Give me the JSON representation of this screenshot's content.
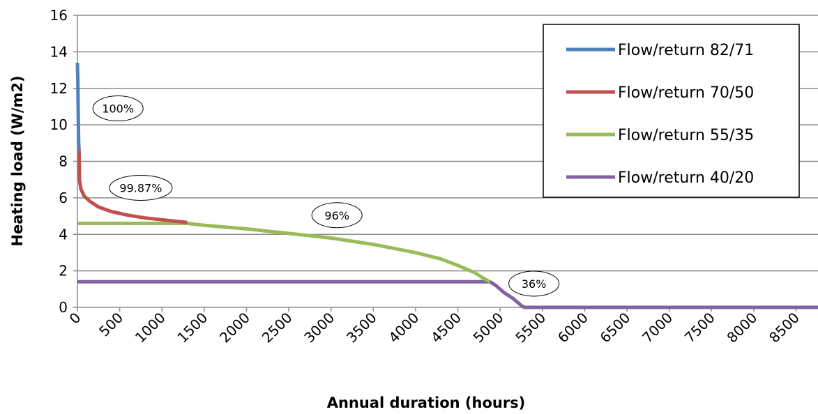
{
  "chart_data": {
    "type": "line",
    "xlabel": "Annual duration (hours)",
    "ylabel": "Heating load (W/m2)",
    "xlim": [
      0,
      8760
    ],
    "ylim": [
      0,
      16
    ],
    "x_ticks": [
      0,
      500,
      1000,
      1500,
      2000,
      2500,
      3000,
      3500,
      4000,
      4500,
      5000,
      5500,
      6000,
      6500,
      7000,
      7500,
      8000,
      8500
    ],
    "y_ticks": [
      0,
      2,
      4,
      6,
      8,
      10,
      12,
      14,
      16
    ],
    "grid": "horizontal",
    "legend_position": "top-right",
    "series": [
      {
        "name": "Flow/return 82/71",
        "color": "#4f81bd",
        "points": [
          [
            0,
            13.4
          ],
          [
            5,
            12.5
          ],
          [
            10,
            10.5
          ],
          [
            15,
            9.0
          ],
          [
            20,
            8.6
          ]
        ]
      },
      {
        "name": "Flow/return 70/50",
        "color": "#c0504d",
        "points": [
          [
            20,
            8.6
          ],
          [
            25,
            7.0
          ],
          [
            40,
            6.5
          ],
          [
            80,
            6.1
          ],
          [
            150,
            5.8
          ],
          [
            250,
            5.5
          ],
          [
            400,
            5.25
          ],
          [
            600,
            5.05
          ],
          [
            800,
            4.9
          ],
          [
            1000,
            4.8
          ],
          [
            1200,
            4.7
          ],
          [
            1300,
            4.65
          ]
        ]
      },
      {
        "name": "Flow/return 55/35",
        "color": "#9bbb59",
        "points": [
          [
            0,
            4.6
          ],
          [
            1300,
            4.6
          ],
          [
            1500,
            4.5
          ],
          [
            2000,
            4.3
          ],
          [
            2500,
            4.05
          ],
          [
            3000,
            3.8
          ],
          [
            3500,
            3.45
          ],
          [
            4000,
            3.0
          ],
          [
            4300,
            2.65
          ],
          [
            4500,
            2.3
          ],
          [
            4700,
            1.9
          ],
          [
            4800,
            1.6
          ],
          [
            4880,
            1.4
          ]
        ]
      },
      {
        "name": "Flow/return 40/20",
        "color": "#8064a2",
        "points": [
          [
            0,
            1.4
          ],
          [
            4880,
            1.4
          ],
          [
            4950,
            1.2
          ],
          [
            5050,
            0.8
          ],
          [
            5150,
            0.5
          ],
          [
            5250,
            0.1
          ],
          [
            5290,
            0.0
          ],
          [
            8760,
            0.0
          ]
        ]
      }
    ],
    "annotations": [
      {
        "text": "100%",
        "x": 480,
        "y": 10.9
      },
      {
        "text": "99.87%",
        "x": 750,
        "y": 6.55
      },
      {
        "text": "96%",
        "x": 3070,
        "y": 5.05
      },
      {
        "text": "36%",
        "x": 5400,
        "y": 1.3
      }
    ]
  }
}
